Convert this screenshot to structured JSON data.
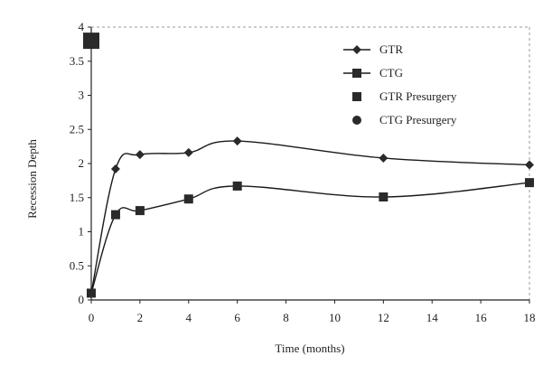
{
  "chart_data": {
    "type": "line",
    "title": "",
    "xlabel": "Time (months)",
    "ylabel": "Recession Depth",
    "xlim": [
      0,
      18
    ],
    "ylim": [
      0,
      4
    ],
    "x_ticks": [
      0,
      2,
      4,
      6,
      8,
      10,
      12,
      14,
      16,
      18
    ],
    "y_ticks": [
      0,
      0.5,
      1,
      1.5,
      2,
      2.5,
      3,
      3.5,
      4
    ],
    "x_tick_labels": [
      "0",
      "2",
      "4",
      "6",
      "8",
      "10",
      "12",
      "14",
      "16",
      "18"
    ],
    "y_tick_labels": [
      "0",
      "0.5",
      "1",
      "1.5",
      "2",
      "2.5",
      "3",
      "3.5",
      "4"
    ],
    "grid": false,
    "legend_position": "top-right",
    "series": [
      {
        "name": "GTR",
        "marker": "diamond",
        "line": true,
        "x": [
          0,
          1,
          2,
          4,
          6,
          12,
          18
        ],
        "y": [
          0.1,
          1.92,
          2.13,
          2.16,
          2.33,
          2.08,
          1.98
        ]
      },
      {
        "name": "CTG",
        "marker": "square",
        "line": true,
        "x": [
          0,
          1,
          2,
          4,
          6,
          12,
          18
        ],
        "y": [
          0.1,
          1.25,
          1.31,
          1.48,
          1.67,
          1.51,
          1.72
        ]
      },
      {
        "name": "GTR Presurgery",
        "marker": "square",
        "line": false,
        "x": [
          0
        ],
        "y": [
          3.8
        ]
      },
      {
        "name": "CTG Presurgery",
        "marker": "circle",
        "line": false,
        "x": [],
        "y": []
      }
    ],
    "colors": {
      "line": "#1a1a1a",
      "marker": "#2a2a2a",
      "axis": "#222222"
    }
  }
}
